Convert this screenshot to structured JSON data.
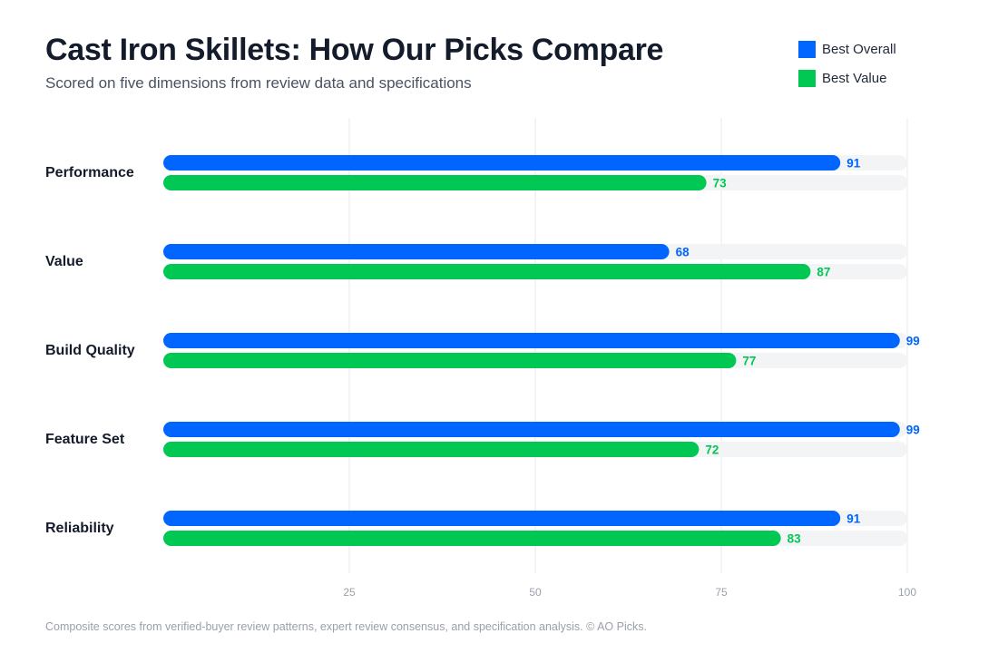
{
  "header": {
    "title": "Cast Iron Skillets: How Our Picks Compare",
    "subtitle": "Scored on five dimensions from review data and specifications"
  },
  "legend": [
    {
      "label": "Best Overall",
      "color": "#0066ff"
    },
    {
      "label": "Best Value",
      "color": "#00c853"
    }
  ],
  "footnote": "Composite scores from verified-buyer review patterns, expert review consensus, and specification analysis. © AO Picks.",
  "chart_data": {
    "type": "bar",
    "orientation": "horizontal",
    "categories": [
      "Performance",
      "Value",
      "Build Quality",
      "Feature Set",
      "Reliability"
    ],
    "series": [
      {
        "name": "Best Overall",
        "color": "#0066ff",
        "values": [
          91,
          68,
          99,
          99,
          91
        ]
      },
      {
        "name": "Best Value",
        "color": "#00c853",
        "values": [
          73,
          87,
          77,
          72,
          83
        ]
      }
    ],
    "xlim": [
      0,
      100
    ],
    "xticks": [
      25,
      50,
      75,
      100
    ],
    "grid": true,
    "legend_position": "top-right",
    "track_color": "#f3f4f6",
    "grid_color": "#e8e9ec",
    "data_labels": true
  }
}
